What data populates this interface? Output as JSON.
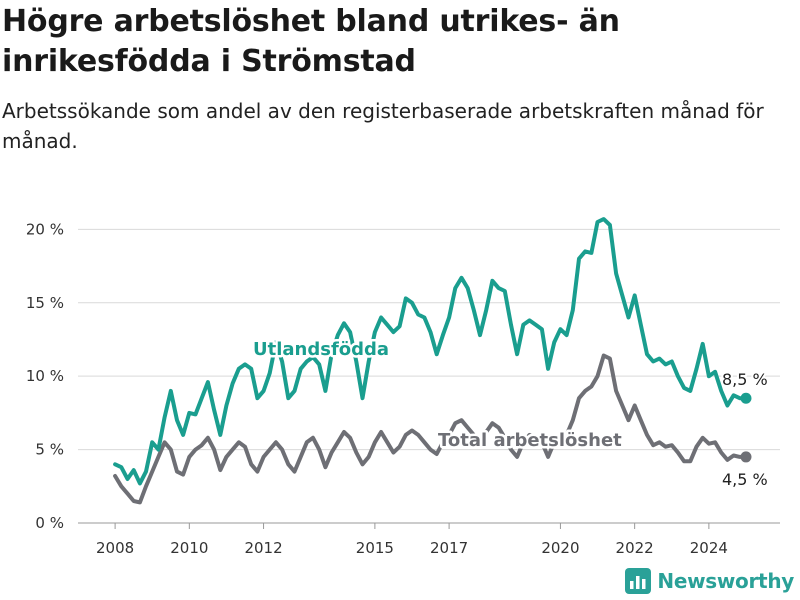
{
  "title": "Högre arbetslöshet bland utrikes- än inrikesfödda i Strömstad",
  "subtitle": "Arbetssökande som andel av den registerbaserade arbetskraften månad för månad.",
  "brand": {
    "name": "Newsworthy",
    "icon": "bar-chart-logo-icon"
  },
  "colors": {
    "foreign_born": "#1a9e8f",
    "total": "#6e6f75",
    "grid": "#d9d9d9"
  },
  "chart_data": {
    "type": "line",
    "title": "Högre arbetslöshet bland utrikes- än inrikesfödda i Strömstad",
    "subtitle": "Arbetssökande som andel av den registerbaserade arbetskraften månad för månad.",
    "xlim": [
      "2007-01",
      "2025-12"
    ],
    "ylim": [
      0,
      22
    ],
    "y_ticks": [
      0,
      5,
      10,
      15,
      20
    ],
    "y_tick_labels": [
      "0 %",
      "5 %",
      "10 %",
      "15 %",
      "20 %"
    ],
    "x_ticks": [
      2008,
      2010,
      2012,
      2015,
      2017,
      2020,
      2022,
      2024
    ],
    "x_tick_labels": [
      "2008",
      "2010",
      "2012",
      "2015",
      "2017",
      "2020",
      "2022",
      "2024"
    ],
    "grid": "horizontal",
    "series": [
      {
        "name": "Utlandsfödda",
        "end_label": "8,5 %",
        "points": [
          [
            "2008-01",
            4.0
          ],
          [
            "2008-03",
            3.8
          ],
          [
            "2008-05",
            3.0
          ],
          [
            "2008-07",
            3.6
          ],
          [
            "2008-09",
            2.7
          ],
          [
            "2008-11",
            3.5
          ],
          [
            "2009-01",
            5.5
          ],
          [
            "2009-03",
            5.0
          ],
          [
            "2009-05",
            7.2
          ],
          [
            "2009-07",
            9.0
          ],
          [
            "2009-09",
            7.0
          ],
          [
            "2009-11",
            6.0
          ],
          [
            "2010-01",
            7.5
          ],
          [
            "2010-03",
            7.4
          ],
          [
            "2010-05",
            8.5
          ],
          [
            "2010-07",
            9.6
          ],
          [
            "2010-09",
            7.7
          ],
          [
            "2010-11",
            6.0
          ],
          [
            "2011-01",
            8.0
          ],
          [
            "2011-03",
            9.5
          ],
          [
            "2011-05",
            10.5
          ],
          [
            "2011-07",
            10.8
          ],
          [
            "2011-09",
            10.5
          ],
          [
            "2011-11",
            8.5
          ],
          [
            "2012-01",
            9.0
          ],
          [
            "2012-03",
            10.2
          ],
          [
            "2012-05",
            12.3
          ],
          [
            "2012-07",
            11.0
          ],
          [
            "2012-09",
            8.5
          ],
          [
            "2012-11",
            9.0
          ],
          [
            "2013-01",
            10.5
          ],
          [
            "2013-03",
            11.0
          ],
          [
            "2013-05",
            11.3
          ],
          [
            "2013-07",
            10.8
          ],
          [
            "2013-09",
            9.0
          ],
          [
            "2013-11",
            11.5
          ],
          [
            "2014-01",
            12.8
          ],
          [
            "2014-03",
            13.6
          ],
          [
            "2014-05",
            13.0
          ],
          [
            "2014-07",
            11.0
          ],
          [
            "2014-09",
            8.5
          ],
          [
            "2014-11",
            11.0
          ],
          [
            "2015-01",
            13.0
          ],
          [
            "2015-03",
            14.0
          ],
          [
            "2015-05",
            13.5
          ],
          [
            "2015-07",
            13.0
          ],
          [
            "2015-09",
            13.4
          ],
          [
            "2015-11",
            15.3
          ],
          [
            "2016-01",
            15.0
          ],
          [
            "2016-03",
            14.2
          ],
          [
            "2016-05",
            14.0
          ],
          [
            "2016-07",
            13.0
          ],
          [
            "2016-09",
            11.5
          ],
          [
            "2016-11",
            12.8
          ],
          [
            "2017-01",
            14.0
          ],
          [
            "2017-03",
            16.0
          ],
          [
            "2017-05",
            16.7
          ],
          [
            "2017-07",
            16.0
          ],
          [
            "2017-09",
            14.5
          ],
          [
            "2017-11",
            12.8
          ],
          [
            "2018-01",
            14.5
          ],
          [
            "2018-03",
            16.5
          ],
          [
            "2018-05",
            16.0
          ],
          [
            "2018-07",
            15.8
          ],
          [
            "2018-09",
            13.5
          ],
          [
            "2018-11",
            11.5
          ],
          [
            "2019-01",
            13.5
          ],
          [
            "2019-03",
            13.8
          ],
          [
            "2019-05",
            13.5
          ],
          [
            "2019-07",
            13.2
          ],
          [
            "2019-09",
            10.5
          ],
          [
            "2019-11",
            12.3
          ],
          [
            "2020-01",
            13.2
          ],
          [
            "2020-03",
            12.8
          ],
          [
            "2020-05",
            14.5
          ],
          [
            "2020-07",
            18.0
          ],
          [
            "2020-09",
            18.5
          ],
          [
            "2020-11",
            18.4
          ],
          [
            "2021-01",
            20.5
          ],
          [
            "2021-03",
            20.7
          ],
          [
            "2021-05",
            20.3
          ],
          [
            "2021-07",
            17.0
          ],
          [
            "2021-09",
            15.5
          ],
          [
            "2021-11",
            14.0
          ],
          [
            "2022-01",
            15.5
          ],
          [
            "2022-03",
            13.5
          ],
          [
            "2022-05",
            11.5
          ],
          [
            "2022-07",
            11.0
          ],
          [
            "2022-09",
            11.2
          ],
          [
            "2022-11",
            10.8
          ],
          [
            "2023-01",
            11.0
          ],
          [
            "2023-03",
            10.0
          ],
          [
            "2023-05",
            9.2
          ],
          [
            "2023-07",
            9.0
          ],
          [
            "2023-09",
            10.5
          ],
          [
            "2023-11",
            12.2
          ],
          [
            "2024-01",
            10.0
          ],
          [
            "2024-03",
            10.3
          ],
          [
            "2024-05",
            9.0
          ],
          [
            "2024-07",
            8.0
          ],
          [
            "2024-09",
            8.7
          ],
          [
            "2024-11",
            8.5
          ],
          [
            "2025-01",
            8.5
          ]
        ]
      },
      {
        "name": "Total arbetslöshet",
        "end_label": "4,5 %",
        "points": [
          [
            "2008-01",
            3.2
          ],
          [
            "2008-03",
            2.5
          ],
          [
            "2008-05",
            2.0
          ],
          [
            "2008-07",
            1.5
          ],
          [
            "2008-09",
            1.4
          ],
          [
            "2008-11",
            2.5
          ],
          [
            "2009-01",
            3.5
          ],
          [
            "2009-03",
            4.5
          ],
          [
            "2009-05",
            5.5
          ],
          [
            "2009-07",
            5.0
          ],
          [
            "2009-09",
            3.5
          ],
          [
            "2009-11",
            3.3
          ],
          [
            "2010-01",
            4.5
          ],
          [
            "2010-03",
            5.0
          ],
          [
            "2010-05",
            5.3
          ],
          [
            "2010-07",
            5.8
          ],
          [
            "2010-09",
            5.0
          ],
          [
            "2010-11",
            3.6
          ],
          [
            "2011-01",
            4.5
          ],
          [
            "2011-03",
            5.0
          ],
          [
            "2011-05",
            5.5
          ],
          [
            "2011-07",
            5.2
          ],
          [
            "2011-09",
            4.0
          ],
          [
            "2011-11",
            3.5
          ],
          [
            "2012-01",
            4.5
          ],
          [
            "2012-03",
            5.0
          ],
          [
            "2012-05",
            5.5
          ],
          [
            "2012-07",
            5.0
          ],
          [
            "2012-09",
            4.0
          ],
          [
            "2012-11",
            3.5
          ],
          [
            "2013-01",
            4.5
          ],
          [
            "2013-03",
            5.5
          ],
          [
            "2013-05",
            5.8
          ],
          [
            "2013-07",
            5.0
          ],
          [
            "2013-09",
            3.8
          ],
          [
            "2013-11",
            4.8
          ],
          [
            "2014-01",
            5.5
          ],
          [
            "2014-03",
            6.2
          ],
          [
            "2014-05",
            5.8
          ],
          [
            "2014-07",
            4.8
          ],
          [
            "2014-09",
            4.0
          ],
          [
            "2014-11",
            4.5
          ],
          [
            "2015-01",
            5.5
          ],
          [
            "2015-03",
            6.2
          ],
          [
            "2015-05",
            5.5
          ],
          [
            "2015-07",
            4.8
          ],
          [
            "2015-09",
            5.2
          ],
          [
            "2015-11",
            6.0
          ],
          [
            "2016-01",
            6.3
          ],
          [
            "2016-03",
            6.0
          ],
          [
            "2016-05",
            5.5
          ],
          [
            "2016-07",
            5.0
          ],
          [
            "2016-09",
            4.7
          ],
          [
            "2016-11",
            5.5
          ],
          [
            "2017-01",
            6.0
          ],
          [
            "2017-03",
            6.8
          ],
          [
            "2017-05",
            7.0
          ],
          [
            "2017-07",
            6.5
          ],
          [
            "2017-09",
            6.0
          ],
          [
            "2017-11",
            5.5
          ],
          [
            "2018-01",
            6.2
          ],
          [
            "2018-03",
            6.8
          ],
          [
            "2018-05",
            6.5
          ],
          [
            "2018-07",
            5.8
          ],
          [
            "2018-09",
            5.0
          ],
          [
            "2018-11",
            4.5
          ],
          [
            "2019-01",
            5.5
          ],
          [
            "2019-03",
            6.0
          ],
          [
            "2019-05",
            5.8
          ],
          [
            "2019-07",
            5.5
          ],
          [
            "2019-09",
            4.5
          ],
          [
            "2019-11",
            5.5
          ],
          [
            "2020-01",
            5.8
          ],
          [
            "2020-03",
            6.0
          ],
          [
            "2020-05",
            7.0
          ],
          [
            "2020-07",
            8.5
          ],
          [
            "2020-09",
            9.0
          ],
          [
            "2020-11",
            9.3
          ],
          [
            "2021-01",
            10.0
          ],
          [
            "2021-03",
            11.4
          ],
          [
            "2021-05",
            11.2
          ],
          [
            "2021-07",
            9.0
          ],
          [
            "2021-09",
            8.0
          ],
          [
            "2021-11",
            7.0
          ],
          [
            "2022-01",
            8.0
          ],
          [
            "2022-03",
            7.0
          ],
          [
            "2022-05",
            6.0
          ],
          [
            "2022-07",
            5.3
          ],
          [
            "2022-09",
            5.5
          ],
          [
            "2022-11",
            5.2
          ],
          [
            "2023-01",
            5.3
          ],
          [
            "2023-03",
            4.8
          ],
          [
            "2023-05",
            4.2
          ],
          [
            "2023-07",
            4.2
          ],
          [
            "2023-09",
            5.2
          ],
          [
            "2023-11",
            5.8
          ],
          [
            "2024-01",
            5.4
          ],
          [
            "2024-03",
            5.5
          ],
          [
            "2024-05",
            4.8
          ],
          [
            "2024-07",
            4.3
          ],
          [
            "2024-09",
            4.6
          ],
          [
            "2024-11",
            4.5
          ],
          [
            "2025-01",
            4.5
          ]
        ]
      }
    ]
  }
}
